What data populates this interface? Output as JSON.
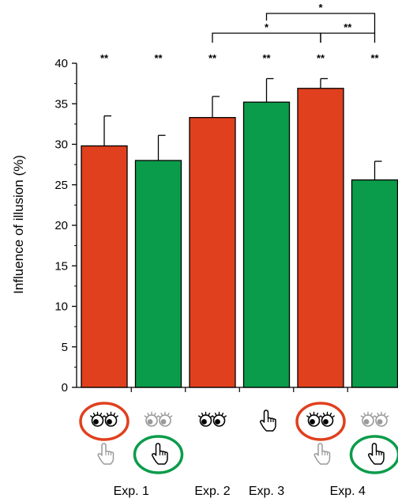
{
  "chart_data": {
    "type": "bar",
    "categories": [
      "Exp. 1 eyes",
      "Exp. 1 hand",
      "Exp. 2 eyes",
      "Exp. 3 hand",
      "Exp. 4 eyes",
      "Exp. 4 hand"
    ],
    "values": [
      29.8,
      28.0,
      33.3,
      35.2,
      36.9,
      25.6
    ],
    "errors": [
      3.7,
      3.1,
      2.6,
      2.9,
      1.2,
      2.3
    ],
    "bar_colors": [
      "#e0401e",
      "#0a9c4a",
      "#e0401e",
      "#0a9c4a",
      "#e0401e",
      "#0a9c4a"
    ],
    "significance_labels": [
      "**",
      "**",
      "**",
      "**",
      "**",
      "**"
    ],
    "comparisons": [
      {
        "from": 2,
        "to": 4,
        "label": "*"
      },
      {
        "from": 3,
        "to": 5,
        "label": "*"
      },
      {
        "from": 4,
        "to": 5,
        "label": "**"
      }
    ],
    "ylabel": "Influence of illusion (%)",
    "ylim": [
      0,
      40
    ],
    "yticks": [
      0,
      5,
      10,
      15,
      20,
      25,
      30,
      35,
      40
    ],
    "conditions": [
      {
        "eyes": "active",
        "hand": "passive",
        "circled": "eyes",
        "circle_color": "#e0401e"
      },
      {
        "eyes": "passive",
        "hand": "active",
        "circled": "hand",
        "circle_color": "#0a9c4a"
      },
      {
        "eyes": "active",
        "hand": "none",
        "circled": "none"
      },
      {
        "eyes": "none",
        "hand": "active",
        "circled": "none"
      },
      {
        "eyes": "active",
        "hand": "passive",
        "circled": "eyes",
        "circle_color": "#e0401e"
      },
      {
        "eyes": "passive",
        "hand": "active",
        "circled": "hand",
        "circle_color": "#0a9c4a"
      }
    ],
    "group_labels": [
      {
        "text": "Exp. 1",
        "bars": [
          0,
          1
        ]
      },
      {
        "text": "Exp. 2",
        "bars": [
          2
        ]
      },
      {
        "text": "Exp. 3",
        "bars": [
          3
        ]
      },
      {
        "text": "Exp. 4",
        "bars": [
          4,
          5
        ]
      }
    ],
    "icon_names": {
      "eyes": "eyes-icon",
      "hand": "pointing-hand-icon"
    },
    "active_icon_color": "#000000",
    "passive_icon_color": "#9a9a9a"
  }
}
